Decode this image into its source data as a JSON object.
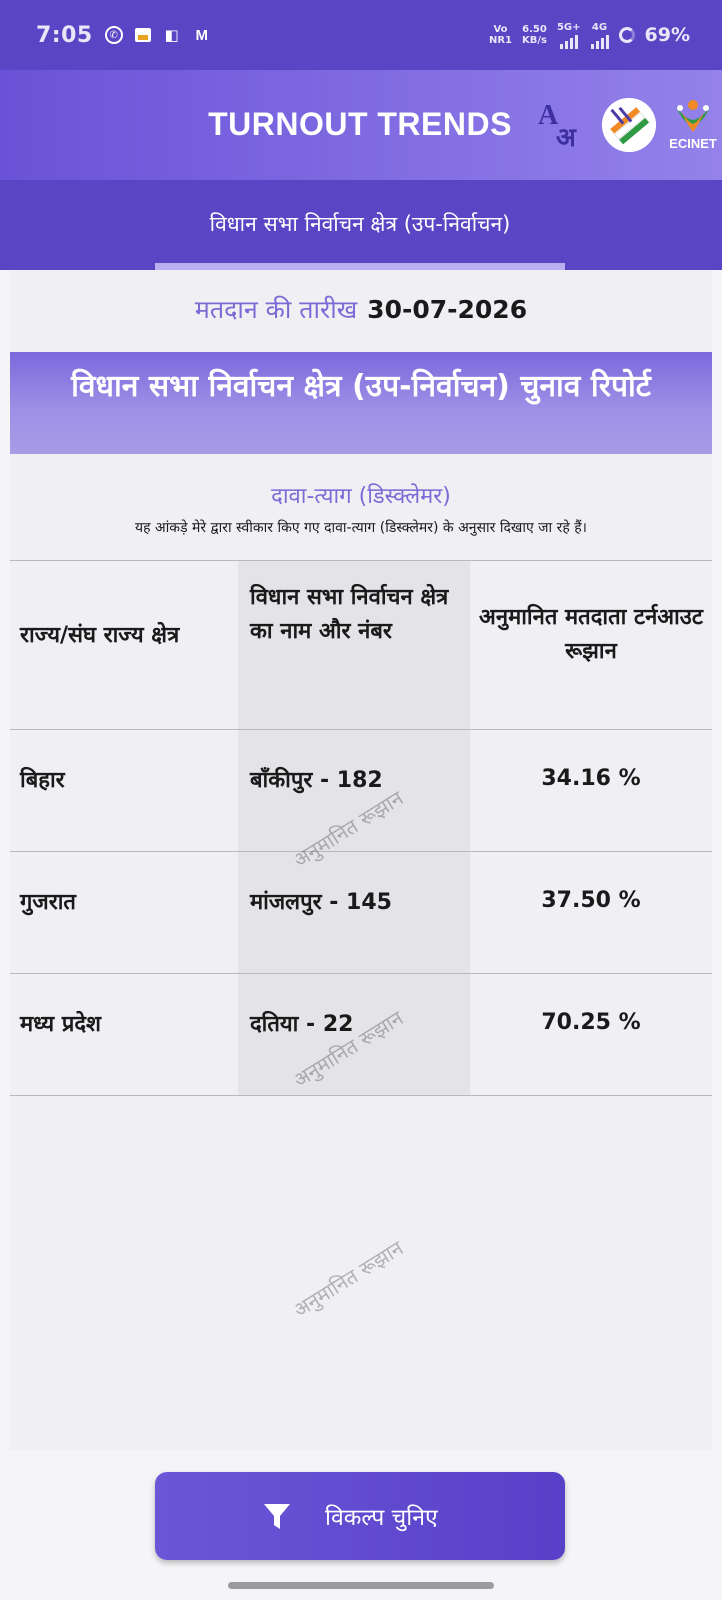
{
  "status_bar": {
    "time": "7:05",
    "net_top": "Vo",
    "net_bottom": "NR1",
    "speed_top": "6.50",
    "speed_bottom": "KB/s",
    "sim1": "5G+",
    "sim2": "4G",
    "battery": "69%"
  },
  "header": {
    "title": "TURNOUT TRENDS",
    "lang_a": "A",
    "lang_hi": "अ",
    "brand": "ECINET"
  },
  "sub_tab": {
    "label": "विधान सभा निर्वाचन क्षेत्र (उप-निर्वाचन)"
  },
  "poll_date": {
    "label": "मतदान की तारीख",
    "value": "30-07-2026"
  },
  "report": {
    "title": "विधान सभा निर्वाचन क्षेत्र (उप-निर्वाचन) चुनाव रिपोर्ट"
  },
  "disclaimer": {
    "title": "दावा-त्याग (डिस्क्लेमर)",
    "text": "यह आंकड़े मेरे द्वारा स्वीकार किए गए दावा-त्याग (डिस्क्लेमर) के अनुसार दिखाए जा रहे हैं।"
  },
  "table": {
    "headers": {
      "state": "राज्य/संघ राज्य क्षेत्र",
      "constituency": "विधान सभा निर्वाचन क्षेत्र का नाम और नंबर",
      "turnout": "अनुमानित मतदाता टर्नआउट रूझान"
    },
    "rows": [
      {
        "state": "बिहार",
        "constituency": "बाँकीपुर - 182",
        "turnout": "34.16 %"
      },
      {
        "state": "गुजरात",
        "constituency": "मांजलपुर - 145",
        "turnout": "37.50 %"
      },
      {
        "state": "मध्य प्रदेश",
        "constituency": "दतिया - 22",
        "turnout": "70.25 %"
      }
    ]
  },
  "watermark": "अनुमानित रूझान",
  "footer": {
    "button_label": "विकल्प चुनिए"
  },
  "colors": {
    "primary": "#5a45c4",
    "accent": "#7a6bd6",
    "banner": "#9d8fe6"
  },
  "icons": [
    "whatsapp-icon",
    "news-icon",
    "app-icon",
    "gmail-icon",
    "translate-icon",
    "eci-logo-icon",
    "ecinet-logo-icon",
    "filter-icon"
  ]
}
